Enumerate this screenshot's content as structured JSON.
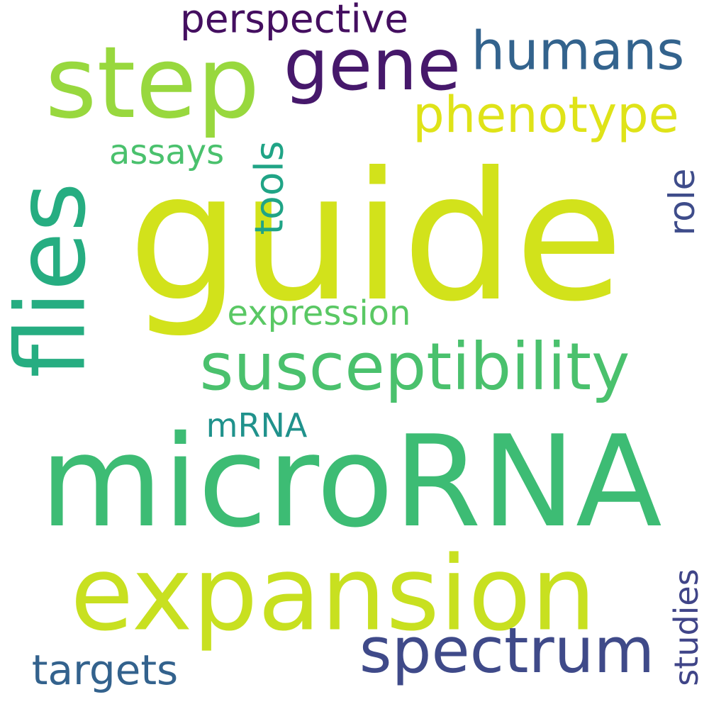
{
  "words": [
    {
      "text": "guide",
      "color": "#d2e21b"
    },
    {
      "text": "microRNA",
      "color": "#3dbc74"
    },
    {
      "text": "expansion",
      "color": "#c8e020"
    },
    {
      "text": "step",
      "color": "#98d83e"
    },
    {
      "text": "flies",
      "color": "#26ad81"
    },
    {
      "text": "gene",
      "color": "#46186b"
    },
    {
      "text": "susceptibility",
      "color": "#4ac16d"
    },
    {
      "text": "spectrum",
      "color": "#3f4a89"
    },
    {
      "text": "humans",
      "color": "#33638d"
    },
    {
      "text": "phenotype",
      "color": "#dfe318"
    },
    {
      "text": "perspective",
      "color": "#440f60"
    },
    {
      "text": "tools",
      "color": "#20a486"
    },
    {
      "text": "role",
      "color": "#3e4c8a"
    },
    {
      "text": "assays",
      "color": "#4ac16d"
    },
    {
      "text": "expression",
      "color": "#5ac864"
    },
    {
      "text": "mRNA",
      "color": "#20928c"
    },
    {
      "text": "targets",
      "color": "#33628d"
    },
    {
      "text": "studies",
      "color": "#404588"
    }
  ]
}
